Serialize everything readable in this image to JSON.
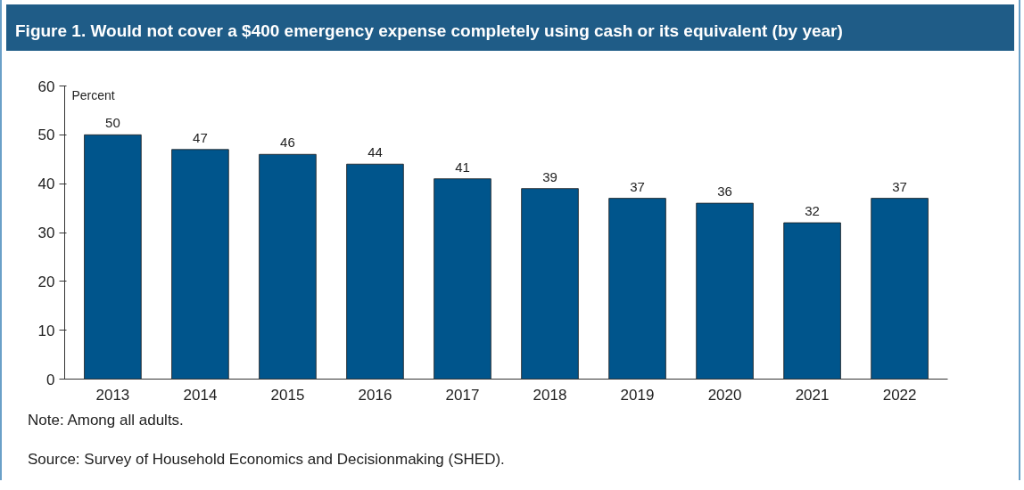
{
  "chart_data": {
    "type": "bar",
    "title": "Figure 1. Would not cover a $400 emergency expense completely using cash or its equivalent (by year)",
    "ylabel": "Percent",
    "categories": [
      "2013",
      "2014",
      "2015",
      "2016",
      "2017",
      "2018",
      "2019",
      "2020",
      "2021",
      "2022"
    ],
    "values": [
      50,
      47,
      46,
      44,
      41,
      39,
      37,
      36,
      32,
      37
    ],
    "color": "#00558c",
    "ylim": [
      0,
      60
    ],
    "yticks": [
      0,
      10,
      20,
      30,
      40,
      50,
      60
    ],
    "grid": false,
    "data_labels": true,
    "annotations": [
      "Note: Among all adults.",
      "Source: Survey of Household Economics and Decisionmaking (SHED)."
    ]
  }
}
